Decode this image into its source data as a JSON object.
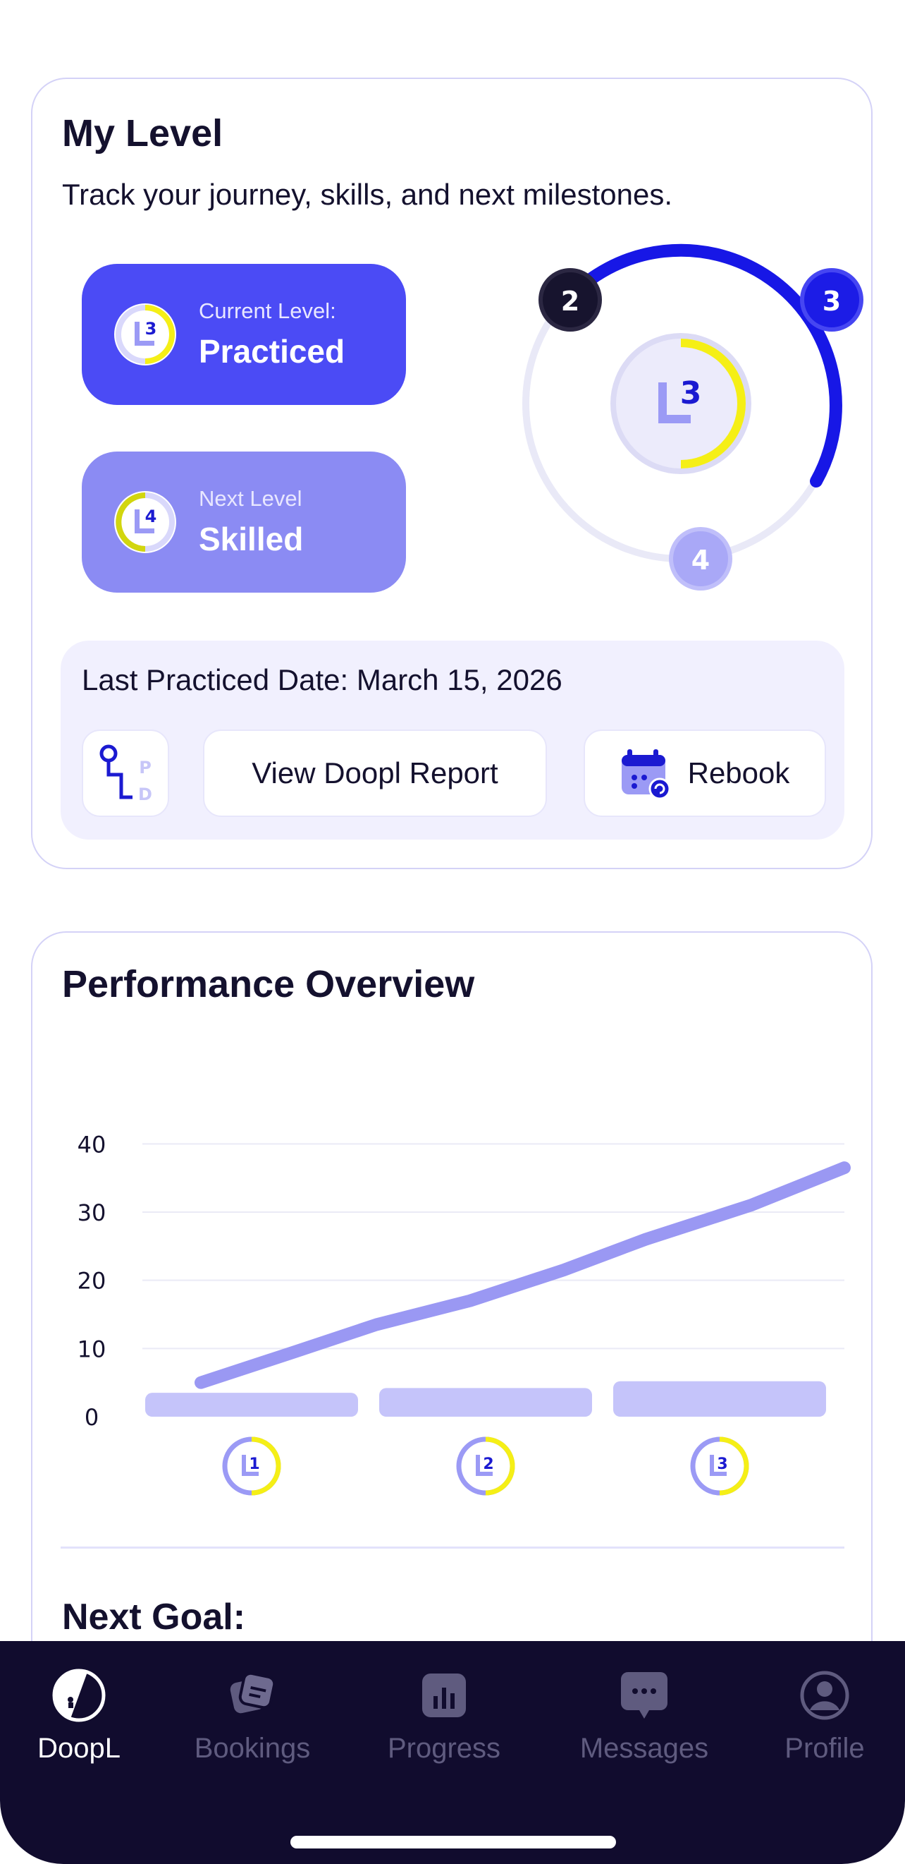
{
  "level_card": {
    "title": "My Level",
    "subtitle": "Track your journey, skills, and next milestones.",
    "current": {
      "label": "Current Level:",
      "value": "Practiced",
      "badge": "3"
    },
    "next": {
      "label": "Next Level",
      "value": "Skilled",
      "badge": "4"
    },
    "ring": {
      "center_badge": "3",
      "nodes": [
        "2",
        "3",
        "4"
      ],
      "progress": 0.33
    },
    "practice": {
      "date_text": "Last Practiced Date: March 15, 2026",
      "pd_letters": [
        "P",
        "D"
      ],
      "report_label": "View Doopl Report",
      "rebook_label": "Rebook"
    }
  },
  "performance": {
    "title": "Performance Overview",
    "next_goal_label": "Next Goal:"
  },
  "chart_data": {
    "type": "line",
    "categories": [
      "L1",
      "L2",
      "L3"
    ],
    "bar_values": [
      3.5,
      4.2,
      5.2
    ],
    "line_x": [
      0.25,
      0.65,
      1.0,
      1.4,
      1.8,
      2.15,
      2.6,
      3.0
    ],
    "line_y": [
      5,
      9.5,
      13.5,
      17,
      21.5,
      26,
      31,
      36.5
    ],
    "yticks": [
      0,
      10,
      20,
      30,
      40
    ],
    "ylim": [
      0,
      42
    ],
    "grid": true,
    "colors": {
      "line": "#9a98f3",
      "bars": "#c5c4fa",
      "grid": "#eaeaf6"
    }
  },
  "tab_bar": {
    "tabs": [
      {
        "label": "DoopL",
        "icon": "doopl-logo-icon",
        "active": true
      },
      {
        "label": "Bookings",
        "icon": "bookings-icon",
        "active": false
      },
      {
        "label": "Progress",
        "icon": "bar-chart-icon",
        "active": false
      },
      {
        "label": "Messages",
        "icon": "chat-bubble-icon",
        "active": false
      },
      {
        "label": "Profile",
        "icon": "profile-icon",
        "active": false
      }
    ]
  },
  "colors": {
    "primary": "#4b4bf5",
    "secondary": "#8b8bf3",
    "accent_yellow": "#f5ef16",
    "dark": "#14112e",
    "tab_bar": "#110c2e"
  }
}
